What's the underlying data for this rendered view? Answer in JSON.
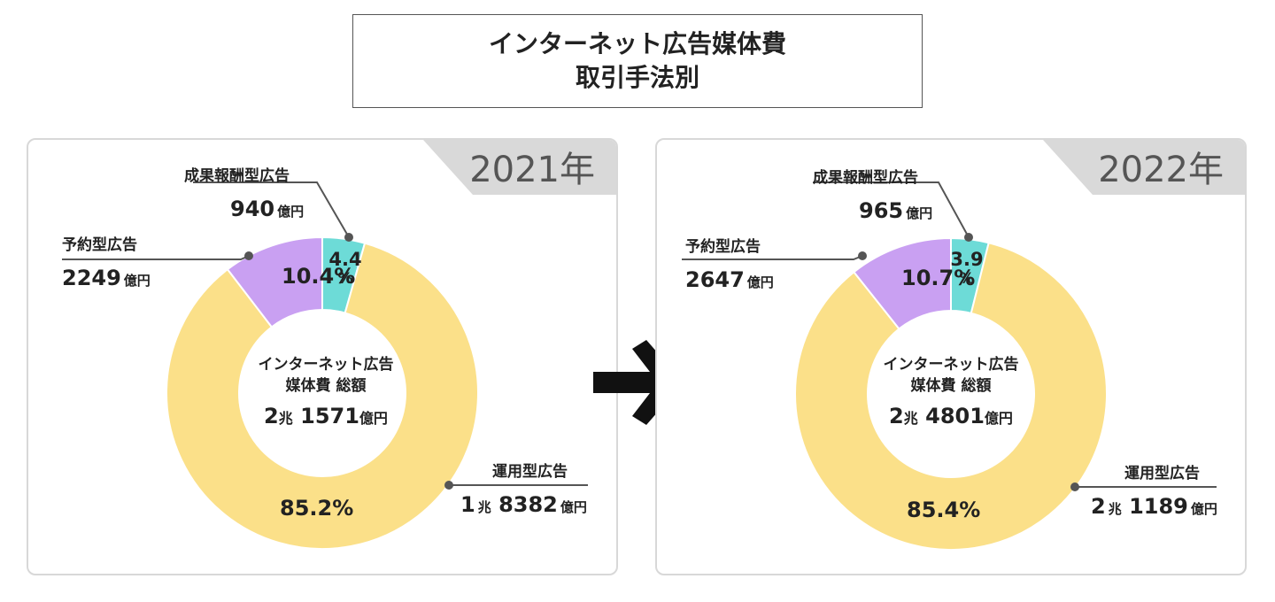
{
  "title": {
    "line1": "インターネット広告媒体費",
    "line2": "取引手法別"
  },
  "center_label": {
    "line1": "インターネット広告",
    "line2": "媒体費 総額"
  },
  "colors": {
    "unyo": "#fbe089",
    "yoyaku": "#c9a0f2",
    "seika": "#6ddbd7",
    "tab": "#d9d9d9"
  },
  "chart_data": [
    {
      "type": "pie",
      "year_label": "2021年",
      "total": {
        "cho": "2",
        "oku": "1571",
        "cho_unit": "兆",
        "oku_unit": "億円"
      },
      "slices": [
        {
          "name": "成果報酬型広告",
          "amount": "940",
          "unit": "億円",
          "percent": 4.4,
          "percent_label": "4.4",
          "percent_sign": "%"
        },
        {
          "name": "予約型広告",
          "amount": "2249",
          "unit": "億円",
          "percent": 10.4,
          "percent_label": "10.4%"
        },
        {
          "name": "運用型広告",
          "amount_cho": "1",
          "amount": "8382",
          "cho_unit": "兆",
          "unit": "億円",
          "percent": 85.2,
          "percent_label": "85.2%"
        }
      ]
    },
    {
      "type": "pie",
      "year_label": "2022年",
      "total": {
        "cho": "2",
        "oku": "4801",
        "cho_unit": "兆",
        "oku_unit": "億円"
      },
      "slices": [
        {
          "name": "成果報酬型広告",
          "amount": "965",
          "unit": "億円",
          "percent": 3.9,
          "percent_label": "3.9",
          "percent_sign": "%"
        },
        {
          "name": "予約型広告",
          "amount": "2647",
          "unit": "億円",
          "percent": 10.7,
          "percent_label": "10.7%"
        },
        {
          "name": "運用型広告",
          "amount_cho": "2",
          "amount": "1189",
          "cho_unit": "兆",
          "unit": "億円",
          "percent": 85.4,
          "percent_label": "85.4%"
        }
      ]
    }
  ]
}
